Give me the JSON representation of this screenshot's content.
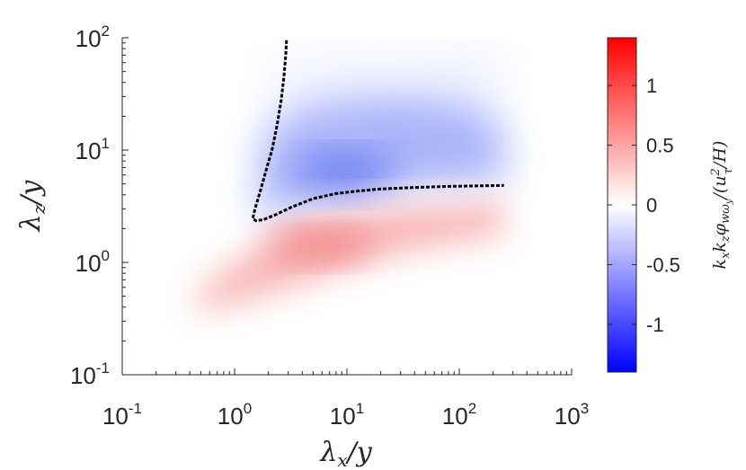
{
  "chart_data": {
    "type": "heatmap",
    "xlabel": "λx/y",
    "ylabel": "λz/y",
    "colorbar_label": "kxkzφwωy/(u²τ/H)",
    "x_scale": "log",
    "y_scale": "log",
    "xlim": [
      0.1,
      1000
    ],
    "ylim": [
      0.1,
      100
    ],
    "x_ticks": [
      {
        "base": "10",
        "exp": "-1",
        "value": 0.1
      },
      {
        "base": "10",
        "exp": "0",
        "value": 1
      },
      {
        "base": "10",
        "exp": "1",
        "value": 10
      },
      {
        "base": "10",
        "exp": "2",
        "value": 100
      },
      {
        "base": "10",
        "exp": "3",
        "value": 1000
      }
    ],
    "y_ticks": [
      {
        "base": "10",
        "exp": "-1",
        "value": 0.1
      },
      {
        "base": "10",
        "exp": "0",
        "value": 1
      },
      {
        "base": "10",
        "exp": "1",
        "value": 10
      },
      {
        "base": "10",
        "exp": "2",
        "value": 100
      }
    ],
    "colorbar": {
      "range": [
        -1.4,
        1.4
      ],
      "ticks": [
        {
          "label": "1",
          "value": 1
        },
        {
          "label": "0.5",
          "value": 0.5
        },
        {
          "label": "0",
          "value": 0
        },
        {
          "label": "-0.5",
          "value": -0.5
        },
        {
          "label": "-1",
          "value": -1
        }
      ],
      "colormap": [
        "#0000ff",
        "#ffffff",
        "#ff0000"
      ]
    },
    "regions": [
      {
        "sign": "negative",
        "peak_value": -0.8,
        "center": [
          10,
          5
        ],
        "x_extent": [
          1.5,
          250
        ],
        "y_extent": [
          3,
          60
        ]
      },
      {
        "sign": "positive",
        "peak_value": 0.5,
        "center": [
          8,
          1.5
        ],
        "x_extent": [
          0.4,
          250
        ],
        "y_extent": [
          0.4,
          3
        ]
      }
    ],
    "contour": {
      "style": "dashed",
      "color": "#000000",
      "points": [
        [
          2.9,
          95
        ],
        [
          2.85,
          70
        ],
        [
          2.75,
          45
        ],
        [
          2.6,
          28
        ],
        [
          2.4,
          17
        ],
        [
          2.15,
          10
        ],
        [
          1.9,
          6.5
        ],
        [
          1.68,
          4.2
        ],
        [
          1.52,
          3.0
        ],
        [
          1.45,
          2.45
        ],
        [
          1.55,
          2.35
        ],
        [
          1.8,
          2.4
        ],
        [
          2.3,
          2.65
        ],
        [
          3.2,
          3.1
        ],
        [
          5,
          3.7
        ],
        [
          8,
          4.1
        ],
        [
          12,
          4.3
        ],
        [
          20,
          4.5
        ],
        [
          40,
          4.65
        ],
        [
          80,
          4.75
        ],
        [
          150,
          4.8
        ],
        [
          250,
          4.85
        ]
      ]
    }
  }
}
